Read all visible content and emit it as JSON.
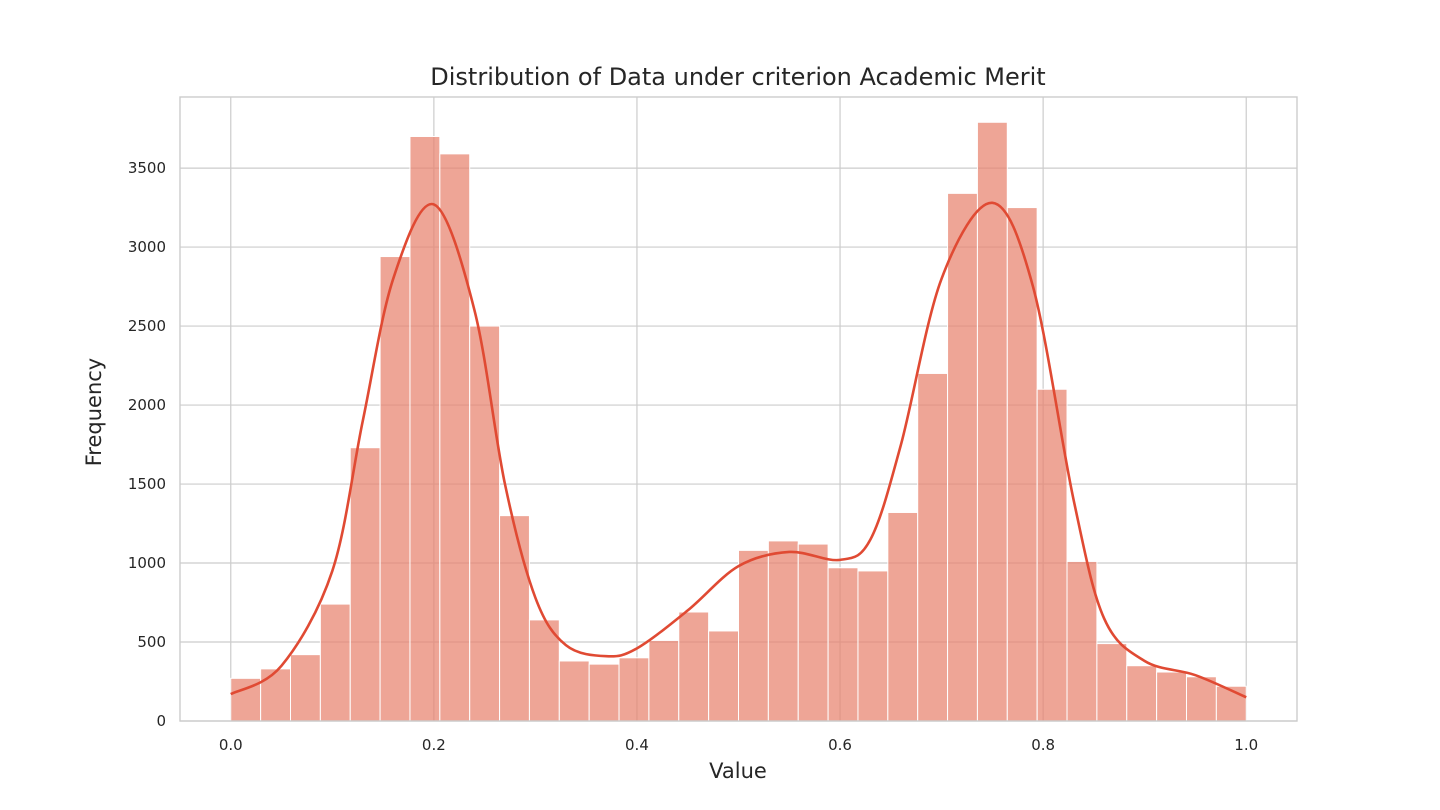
{
  "chart_data": {
    "type": "histogram",
    "title": "Distribution of Data under criterion Academic Merit",
    "xlabel": "Value",
    "ylabel": "Frequency",
    "xlim": [
      -0.05,
      1.05
    ],
    "ylim": [
      0,
      3950
    ],
    "x_ticks": [
      0.0,
      0.2,
      0.4,
      0.6,
      0.8,
      1.0
    ],
    "x_tick_labels": [
      "0.0",
      "0.2",
      "0.4",
      "0.6",
      "0.8",
      "1.0"
    ],
    "y_ticks": [
      0,
      500,
      1000,
      1500,
      2000,
      2500,
      3000,
      3500
    ],
    "y_tick_labels": [
      "0",
      "500",
      "1000",
      "1500",
      "2000",
      "2500",
      "3000",
      "3500"
    ],
    "grid": true,
    "bin_edges_range": [
      0.0,
      1.0
    ],
    "bin_count": 34,
    "counts": [
      270,
      330,
      420,
      740,
      1730,
      2940,
      3700,
      3590,
      2500,
      1300,
      640,
      380,
      360,
      400,
      510,
      690,
      570,
      1080,
      1140,
      1120,
      970,
      950,
      1320,
      2200,
      3340,
      3790,
      3250,
      2100,
      1010,
      490,
      350,
      310,
      280,
      220
    ],
    "kde": {
      "x": [
        0.0,
        0.05,
        0.1,
        0.13,
        0.16,
        0.2,
        0.24,
        0.27,
        0.3,
        0.33,
        0.37,
        0.4,
        0.45,
        0.5,
        0.55,
        0.6,
        0.63,
        0.66,
        0.7,
        0.75,
        0.79,
        0.83,
        0.86,
        0.9,
        0.95,
        1.0
      ],
      "y": [
        170,
        350,
        950,
        1900,
        2800,
        3270,
        2600,
        1500,
        780,
        480,
        410,
        460,
        700,
        980,
        1070,
        1020,
        1150,
        1750,
        2800,
        3280,
        2750,
        1400,
        650,
        380,
        290,
        150
      ]
    },
    "bar_color": "#e8826e",
    "kde_color": "#e04a33",
    "grid_color": "#cccccc"
  }
}
